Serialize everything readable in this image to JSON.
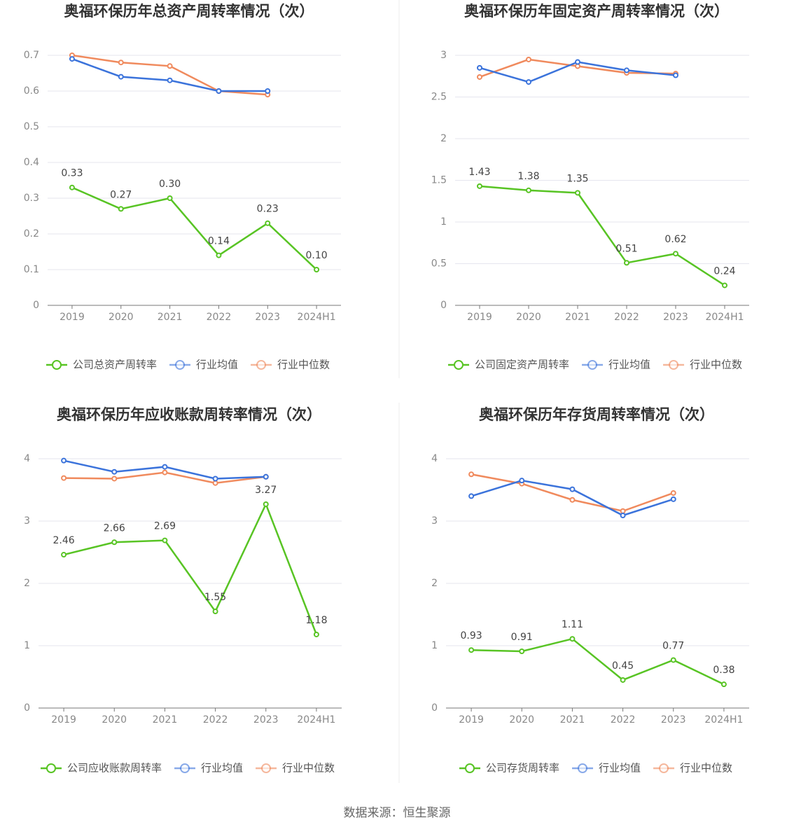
{
  "chart_data": [
    {
      "type": "line",
      "title": "奥福环保历年总资产周转率情况（次）",
      "categories": [
        "2019",
        "2020",
        "2021",
        "2022",
        "2023",
        "2024H1"
      ],
      "ylim": [
        0,
        0.7
      ],
      "yticks": [
        0,
        0.1,
        0.2,
        0.3,
        0.4,
        0.5,
        0.6,
        0.7
      ],
      "grid": true,
      "series": [
        {
          "name": "公司总资产周转率",
          "color": "#58c424",
          "values": [
            0.33,
            0.27,
            0.3,
            0.14,
            0.23,
            0.1
          ],
          "value_labels": [
            "0.33",
            "0.27",
            "0.30",
            "0.14",
            "0.23",
            "0.10"
          ]
        },
        {
          "name": "行业均值",
          "color": "#3b73db",
          "values": [
            0.69,
            0.64,
            0.63,
            0.6,
            0.6,
            null
          ]
        },
        {
          "name": "行业中位数",
          "color": "#f08a5d",
          "values": [
            0.7,
            0.68,
            0.67,
            0.6,
            0.59,
            null
          ]
        }
      ]
    },
    {
      "type": "line",
      "title": "奥福环保历年固定资产周转率情况（次）",
      "categories": [
        "2019",
        "2020",
        "2021",
        "2022",
        "2023",
        "2024H1"
      ],
      "ylim": [
        0,
        3
      ],
      "yticks": [
        0,
        0.5,
        1,
        1.5,
        2,
        2.5,
        3
      ],
      "grid": true,
      "series": [
        {
          "name": "公司固定资产周转率",
          "color": "#58c424",
          "values": [
            1.43,
            1.38,
            1.35,
            0.51,
            0.62,
            0.24
          ],
          "value_labels": [
            "1.43",
            "1.38",
            "1.35",
            "0.51",
            "0.62",
            "0.24"
          ]
        },
        {
          "name": "行业均值",
          "color": "#3b73db",
          "values": [
            2.85,
            2.68,
            2.92,
            2.82,
            2.76,
            null
          ]
        },
        {
          "name": "行业中位数",
          "color": "#f08a5d",
          "values": [
            2.74,
            2.95,
            2.87,
            2.79,
            2.78,
            null
          ]
        }
      ]
    },
    {
      "type": "line",
      "title": "奥福环保历年应收账款周转率情况（次）",
      "categories": [
        "2019",
        "2020",
        "2021",
        "2022",
        "2023",
        "2024H1"
      ],
      "ylim": [
        0,
        4
      ],
      "yticks": [
        0,
        1,
        2,
        3,
        4
      ],
      "grid": true,
      "series": [
        {
          "name": "公司应收账款周转率",
          "color": "#58c424",
          "values": [
            2.46,
            2.66,
            2.69,
            1.55,
            3.27,
            1.18
          ],
          "value_labels": [
            "2.46",
            "2.66",
            "2.69",
            "1.55",
            "3.27",
            "1.18"
          ]
        },
        {
          "name": "行业均值",
          "color": "#3b73db",
          "values": [
            3.97,
            3.79,
            3.87,
            3.68,
            3.71,
            null
          ]
        },
        {
          "name": "行业中位数",
          "color": "#f08a5d",
          "values": [
            3.69,
            3.68,
            3.78,
            3.61,
            3.71,
            null
          ]
        }
      ]
    },
    {
      "type": "line",
      "title": "奥福环保历年存货周转率情况（次）",
      "categories": [
        "2019",
        "2020",
        "2021",
        "2022",
        "2023",
        "2024H1"
      ],
      "ylim": [
        0,
        4
      ],
      "yticks": [
        0,
        1,
        2,
        3,
        4
      ],
      "grid": true,
      "series": [
        {
          "name": "公司存货周转率",
          "color": "#58c424",
          "values": [
            0.93,
            0.91,
            1.11,
            0.45,
            0.77,
            0.38
          ],
          "value_labels": [
            "0.93",
            "0.91",
            "1.11",
            "0.45",
            "0.77",
            "0.38"
          ]
        },
        {
          "name": "行业均值",
          "color": "#3b73db",
          "values": [
            3.4,
            3.65,
            3.51,
            3.09,
            3.35,
            null
          ]
        },
        {
          "name": "行业中位数",
          "color": "#f08a5d",
          "values": [
            3.75,
            3.6,
            3.34,
            3.16,
            3.45,
            null
          ]
        }
      ]
    }
  ],
  "source": "数据来源：恒生聚源"
}
